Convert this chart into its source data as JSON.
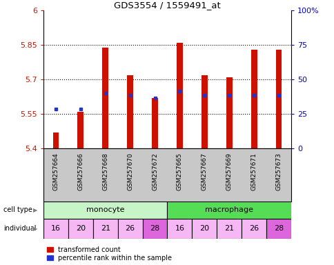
{
  "title": "GDS3554 / 1559491_at",
  "samples": [
    "GSM257664",
    "GSM257666",
    "GSM257668",
    "GSM257670",
    "GSM257672",
    "GSM257665",
    "GSM257667",
    "GSM257669",
    "GSM257671",
    "GSM257673"
  ],
  "red_values": [
    5.47,
    5.56,
    5.84,
    5.72,
    5.62,
    5.86,
    5.72,
    5.71,
    5.83,
    5.83
  ],
  "blue_values": [
    5.57,
    5.57,
    5.64,
    5.63,
    5.62,
    5.65,
    5.63,
    5.63,
    5.63,
    5.63
  ],
  "ylim": [
    5.4,
    6.0
  ],
  "yticks": [
    5.4,
    5.55,
    5.7,
    5.85,
    6.0
  ],
  "ytick_labels": [
    "5.4",
    "5.55",
    "5.7",
    "5.85",
    "6"
  ],
  "y2ticks": [
    0,
    25,
    50,
    75,
    100
  ],
  "y2tick_labels": [
    "0",
    "25",
    "50",
    "75",
    "100%"
  ],
  "cell_types": [
    {
      "label": "monocyte",
      "start": 0,
      "end": 5,
      "color": "#c8f5c8"
    },
    {
      "label": "macrophage",
      "start": 5,
      "end": 10,
      "color": "#55dd55"
    }
  ],
  "individuals": [
    16,
    20,
    21,
    26,
    28,
    16,
    20,
    21,
    26,
    28
  ],
  "individual_colors": [
    "#f5b8f5",
    "#f5b8f5",
    "#f5b8f5",
    "#f5b8f5",
    "#dd66dd",
    "#f5b8f5",
    "#f5b8f5",
    "#f5b8f5",
    "#f5b8f5",
    "#dd66dd"
  ],
  "bar_color": "#cc1100",
  "blue_color": "#2233cc",
  "left_tick_color": "#cc1100",
  "right_tick_color": "#0000cc",
  "xlabel_area_color": "#c8c8c8",
  "legend_red": "transformed count",
  "legend_blue": "percentile rank within the sample"
}
